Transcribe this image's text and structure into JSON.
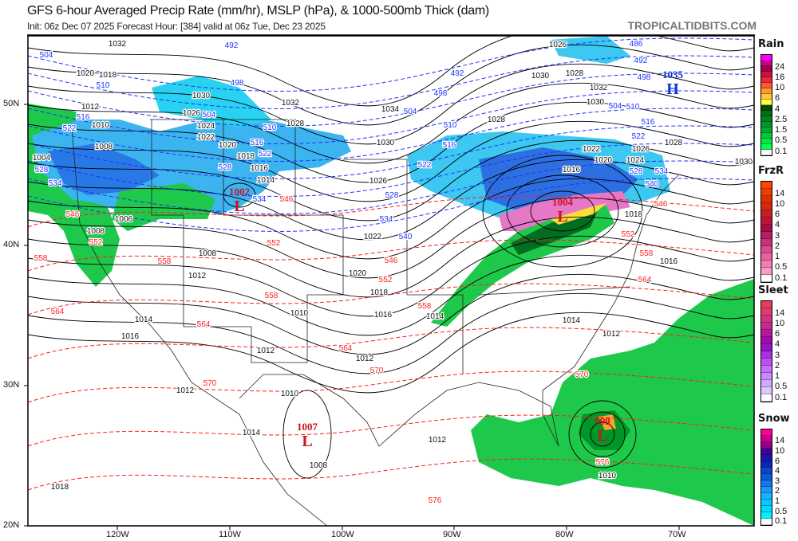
{
  "header": {
    "title": "GFS 6-hour Averaged Precip Rate (mm/hr), MSLP (hPa), & 1000-500mb Thick (dam)",
    "subtitle": "Init: 06z Dec 07 2025   Forecast Hour: [384]   valid at 06z Tue, Dec 23 2025",
    "brand": "TROPICALTIDBITS.COM"
  },
  "axes": {
    "longitude": [
      "120W",
      "110W",
      "100W",
      "90W",
      "80W",
      "70W"
    ],
    "latitude": [
      "50N",
      "40N",
      "30N",
      "20N"
    ]
  },
  "pressure_centers": [
    {
      "type": "L",
      "value": "1002",
      "color": "#d0101e"
    },
    {
      "type": "L",
      "value": "1004",
      "color": "#d0101e"
    },
    {
      "type": "L",
      "value": "1007",
      "color": "#d0101e"
    },
    {
      "type": "L",
      "value": "999",
      "color": "#d0101e"
    },
    {
      "type": "H",
      "value": "1035",
      "color": "#1030d0"
    }
  ],
  "isobar_labels": [
    "1032",
    "1020",
    "1018",
    "1012",
    "1010",
    "1008",
    "1004",
    "1006",
    "1008",
    "1030",
    "1026",
    "1024",
    "1022",
    "1020",
    "1018",
    "1016",
    "1014",
    "1032",
    "1028",
    "1030",
    "1026",
    "1022",
    "1020",
    "1018",
    "1016",
    "1014",
    "1012",
    "1010",
    "1008",
    "1012",
    "1018",
    "1012",
    "1014",
    "1014",
    "1016",
    "1012",
    "1008",
    "1010",
    "1012",
    "1026",
    "1030",
    "1028",
    "1032",
    "1030",
    "1028",
    "1022",
    "1020",
    "1016",
    "1026",
    "1024",
    "1028",
    "1030",
    "1018",
    "1016",
    "1014",
    "1012",
    "1010",
    "1034"
  ],
  "thickness_labels_cold": [
    "492",
    "504",
    "510",
    "498",
    "504",
    "516",
    "522",
    "528",
    "534",
    "510",
    "516",
    "522",
    "528",
    "534",
    "492",
    "498",
    "504",
    "510",
    "516",
    "522",
    "528",
    "534",
    "540",
    "486",
    "492",
    "498",
    "504",
    "510",
    "516",
    "522",
    "528",
    "534",
    "540"
  ],
  "thickness_labels_warm": [
    "546",
    "552",
    "558",
    "558",
    "564",
    "564",
    "570",
    "570",
    "558",
    "552",
    "546",
    "546",
    "552",
    "558",
    "564",
    "570",
    "576",
    "576",
    "546",
    "552",
    "558",
    "564"
  ],
  "legend": [
    {
      "name": "Rain",
      "ticks": [
        "24",
        "16",
        "10",
        "6",
        "4",
        "2.5",
        "1.5",
        "0.5",
        "0.1"
      ],
      "colors": [
        "#ff00ff",
        "#c8008c",
        "#a0003c",
        "#c8143c",
        "#e6283c",
        "#ff5a28",
        "#ff9632",
        "#ffc83c",
        "#ffff3c",
        "#004b00",
        "#006e14",
        "#00821e",
        "#009628",
        "#00aa32",
        "#00c83c",
        "#00e646",
        "#00ff50",
        "#ffffff"
      ]
    },
    {
      "name": "FrzR",
      "ticks": [
        "14",
        "10",
        "6",
        "4",
        "3",
        "2",
        "1",
        "0.5",
        "0.1"
      ],
      "colors": [
        "#ff4600",
        "#f03c00",
        "#dc3200",
        "#d22814",
        "#c81e28",
        "#be143c",
        "#aa0a46",
        "#b41e64",
        "#c83278",
        "#dc4b8c",
        "#e664a0",
        "#f07db4",
        "#fa9bc8",
        "#ffffff"
      ]
    },
    {
      "name": "Sleet",
      "ticks": [
        "14",
        "10",
        "6",
        "4",
        "3",
        "2",
        "1",
        "0.5",
        "0.1"
      ],
      "colors": [
        "#e63c5a",
        "#dc3c6e",
        "#d23282",
        "#c8288c",
        "#b4199b",
        "#a00ab4",
        "#9614c8",
        "#aa32dc",
        "#be50f0",
        "#c86eff",
        "#c88cff",
        "#d2aaff",
        "#dcc8ff",
        "#ffffff"
      ]
    },
    {
      "name": "Snow",
      "ticks": [
        "14",
        "10",
        "6",
        "4",
        "3",
        "2",
        "1",
        "0.5",
        "0.1"
      ],
      "colors": [
        "#ff0096",
        "#c8008c",
        "#960082",
        "#3c0096",
        "#1e14aa",
        "#0a28b4",
        "#0a46c8",
        "#0a5adc",
        "#1478f0",
        "#1e96ff",
        "#14b4ff",
        "#0ac8ff",
        "#00dcff",
        "#00f0ff",
        "#ffffff"
      ]
    }
  ],
  "colors": {
    "isobar": "#000000",
    "thickness_cold": "#1e32ff",
    "thickness_warm": "#ff1e1e",
    "rain": "#00c83c",
    "snow": "#1e96ff"
  }
}
